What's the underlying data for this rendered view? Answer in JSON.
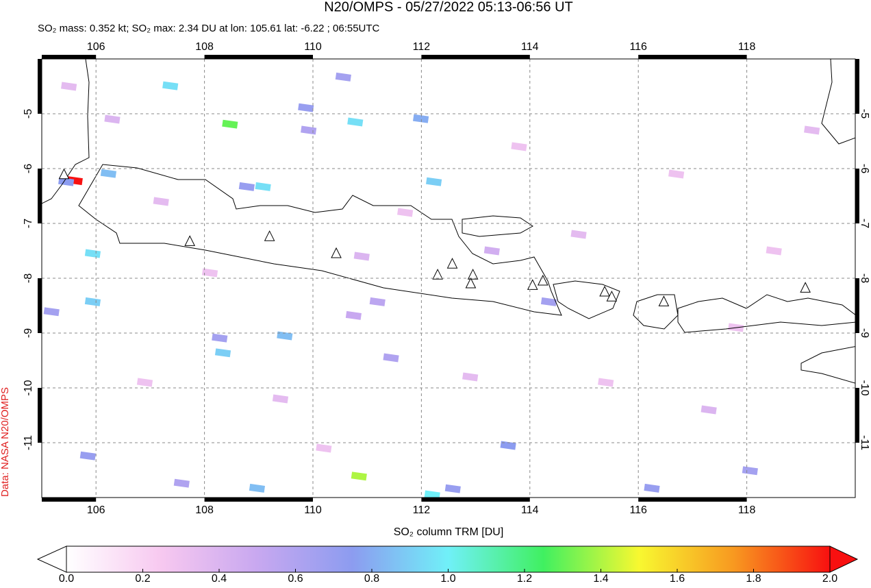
{
  "title": "N20/OMPS - 05/27/2022 05:13-06:56 UT",
  "subtitle": "SO₂ mass: 0.352 kt; SO₂ max: 2.34 DU at lon: 105.61 lat: -6.22 ; 06:55UTC",
  "source": "Data: NASA N20/OMPS",
  "map": {
    "xlim": [
      105,
      120
    ],
    "ylim": [
      -12,
      -4
    ],
    "xticks": [
      106,
      108,
      110,
      112,
      114,
      116,
      118
    ],
    "yticks": [
      -5,
      -6,
      -7,
      -8,
      -9,
      -10,
      -11
    ],
    "grid": true,
    "volcanoes": [
      [
        105.41,
        -6.11
      ],
      [
        107.73,
        -7.33
      ],
      [
        109.2,
        -7.24
      ],
      [
        110.43,
        -7.55
      ],
      [
        112.3,
        -7.94
      ],
      [
        112.57,
        -7.74
      ],
      [
        112.95,
        -7.94
      ],
      [
        112.91,
        -8.1
      ],
      [
        114.05,
        -8.13
      ],
      [
        114.24,
        -8.05
      ],
      [
        115.38,
        -8.25
      ],
      [
        115.51,
        -8.34
      ],
      [
        116.47,
        -8.43
      ],
      [
        119.08,
        -8.18
      ]
    ],
    "pixels": [
      [
        105.61,
        -6.22,
        2.34
      ],
      [
        108.47,
        -5.19,
        1.3
      ],
      [
        110.85,
        -11.61,
        1.4
      ],
      [
        107.37,
        -4.49,
        0.95
      ],
      [
        110.78,
        -5.15,
        0.95
      ],
      [
        109.08,
        -6.33,
        0.95
      ],
      [
        112.23,
        -6.24,
        0.9
      ],
      [
        111.99,
        -5.09,
        0.8
      ],
      [
        105.94,
        -7.55,
        0.95
      ],
      [
        105.94,
        -8.43,
        0.9
      ],
      [
        108.34,
        -9.36,
        0.9
      ],
      [
        109.48,
        -9.05,
        0.85
      ],
      [
        108.97,
        -11.83,
        0.85
      ],
      [
        112.2,
        -11.95,
        1.0
      ],
      [
        109.87,
        -4.89,
        0.7
      ],
      [
        110.56,
        -4.33,
        0.65
      ],
      [
        105.45,
        -6.24,
        0.75
      ],
      [
        108.78,
        -6.33,
        0.7
      ],
      [
        106.23,
        -6.09,
        0.85
      ],
      [
        113.6,
        -11.05,
        0.75
      ],
      [
        112.58,
        -11.84,
        0.7
      ],
      [
        108.28,
        -9.09,
        0.65
      ],
      [
        111.44,
        -9.45,
        0.6
      ],
      [
        114.35,
        -8.43,
        0.65
      ],
      [
        116.25,
        -11.83,
        0.7
      ],
      [
        118.06,
        -11.51,
        0.65
      ],
      [
        105.85,
        -11.24,
        0.7
      ],
      [
        105.18,
        -8.61,
        0.65
      ],
      [
        107.58,
        -11.74,
        0.6
      ],
      [
        109.92,
        -5.3,
        0.6
      ],
      [
        111.19,
        -8.43,
        0.55
      ],
      [
        110.75,
        -8.68,
        0.5
      ],
      [
        106.3,
        -5.1,
        0.4
      ],
      [
        107.2,
        -6.6,
        0.35
      ],
      [
        108.1,
        -7.9,
        0.3
      ],
      [
        109.4,
        -10.2,
        0.35
      ],
      [
        110.9,
        -7.6,
        0.4
      ],
      [
        111.7,
        -6.8,
        0.3
      ],
      [
        112.9,
        -9.8,
        0.35
      ],
      [
        113.8,
        -5.6,
        0.3
      ],
      [
        114.9,
        -7.2,
        0.35
      ],
      [
        115.4,
        -9.9,
        0.3
      ],
      [
        116.7,
        -6.1,
        0.3
      ],
      [
        117.3,
        -10.4,
        0.4
      ],
      [
        118.5,
        -7.5,
        0.3
      ],
      [
        119.2,
        -5.3,
        0.35
      ],
      [
        106.9,
        -9.9,
        0.3
      ],
      [
        113.3,
        -7.5,
        0.45
      ],
      [
        110.2,
        -11.1,
        0.3
      ],
      [
        117.8,
        -8.9,
        0.3
      ],
      [
        105.5,
        -4.5,
        0.35
      ]
    ]
  },
  "colorbar": {
    "label": "SO₂ column TRM [DU]",
    "lim": [
      0,
      2
    ],
    "ticks": [
      {
        "value": 0,
        "label": "0.0"
      },
      0.2,
      0.4,
      0.6,
      0.8,
      {
        "value": 1,
        "label": "1.0"
      },
      1.2,
      1.4,
      1.6,
      1.8,
      {
        "value": 2,
        "label": "2.0"
      }
    ],
    "colors": [
      "#ffffff",
      "#f7c8f0",
      "#c8a8f0",
      "#8c9cf0",
      "#70f0f8",
      "#40f060",
      "#f8f830",
      "#f89820",
      "#f81010"
    ]
  }
}
